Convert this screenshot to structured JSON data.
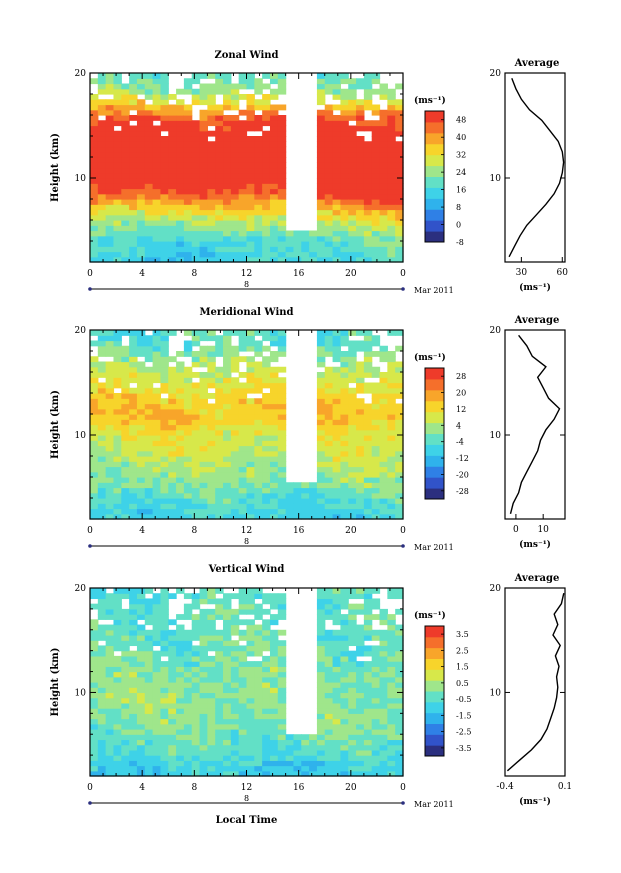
{
  "figure": {
    "x_label": "Local Time",
    "date_label": "Mar 2011",
    "day_label": "8",
    "y_label": "Height (km)",
    "avg_title": "Average",
    "unit_label": "(ms⁻¹)"
  },
  "chart_data": [
    {
      "type": "heatmap",
      "title": "Zonal Wind",
      "xlabel": "Local Time",
      "ylabel": "Height (km)",
      "x_ticks": [
        "0",
        "4",
        "8",
        "12",
        "16",
        "20",
        "0"
      ],
      "xlim": [
        0,
        24
      ],
      "y_ticks": [
        "20",
        "10"
      ],
      "ylim": [
        2,
        20
      ],
      "colorbar": {
        "unit": "(ms⁻¹)",
        "ticks": [
          "48",
          "40",
          "32",
          "24",
          "16",
          "8",
          "0",
          "-8"
        ],
        "range": [
          -8,
          52
        ]
      },
      "field_profile": [
        [
          2,
          14
        ],
        [
          4,
          16
        ],
        [
          6,
          26
        ],
        [
          7,
          34
        ],
        [
          8,
          42
        ],
        [
          9,
          48
        ],
        [
          10,
          55
        ],
        [
          12,
          58
        ],
        [
          14,
          55
        ],
        [
          16,
          45
        ],
        [
          17,
          35
        ],
        [
          18,
          26
        ],
        [
          19,
          22
        ],
        [
          20,
          20
        ]
      ],
      "average": {
        "title": "Average",
        "x_ticks": [
          "30",
          "60"
        ],
        "xlim": [
          18,
          62
        ],
        "y_ticks": [
          "20",
          "10"
        ],
        "xlabel": "(ms⁻¹)",
        "height": [
          2.5,
          3.5,
          4.5,
          5.5,
          6.5,
          7.5,
          8.5,
          9.5,
          10.5,
          11.5,
          12.5,
          13.5,
          14.5,
          15.5,
          16.5,
          17.5,
          18.5,
          19.5
        ],
        "values": [
          21,
          25,
          29,
          34,
          41,
          48,
          54,
          58,
          60,
          61,
          60,
          57,
          51,
          45,
          36,
          30,
          26,
          23
        ]
      }
    },
    {
      "type": "heatmap",
      "title": "Meridional Wind",
      "xlabel": "Local Time",
      "ylabel": "Height (km)",
      "x_ticks": [
        "0",
        "4",
        "8",
        "12",
        "16",
        "20",
        "0"
      ],
      "xlim": [
        0,
        24
      ],
      "y_ticks": [
        "20",
        "10"
      ],
      "ylim": [
        2,
        20
      ],
      "colorbar": {
        "unit": "(ms⁻¹)",
        "ticks": [
          "28",
          "20",
          "12",
          "4",
          "-4",
          "-12",
          "-20",
          "-28"
        ],
        "range": [
          -32,
          32
        ]
      },
      "field_profile": [
        [
          2,
          -8
        ],
        [
          4,
          -4
        ],
        [
          6,
          2
        ],
        [
          8,
          6
        ],
        [
          10,
          9
        ],
        [
          12,
          16
        ],
        [
          14,
          12
        ],
        [
          16,
          7
        ],
        [
          18,
          0
        ],
        [
          19,
          -4
        ],
        [
          20,
          -2
        ]
      ],
      "average": {
        "title": "Average",
        "x_ticks": [
          "0",
          "10"
        ],
        "xlim": [
          -4,
          18
        ],
        "y_ticks": [
          "20",
          "10"
        ],
        "xlabel": "(ms⁻¹)",
        "height": [
          2.5,
          3.5,
          4.5,
          5.5,
          6.5,
          7.5,
          8.5,
          9.5,
          10.5,
          11.5,
          12.5,
          13.5,
          14.5,
          15.5,
          16.5,
          17.5,
          18.5,
          19.5
        ],
        "values": [
          -2,
          -1,
          1,
          2,
          4,
          6,
          8,
          9,
          11,
          14,
          16,
          12,
          10,
          8,
          11,
          6,
          4,
          1
        ]
      }
    },
    {
      "type": "heatmap",
      "title": "Vertical Wind",
      "xlabel": "Local Time",
      "ylabel": "Height (km)",
      "x_ticks": [
        "0",
        "4",
        "8",
        "12",
        "16",
        "20",
        "0"
      ],
      "xlim": [
        0,
        24
      ],
      "y_ticks": [
        "20",
        "10"
      ],
      "ylim": [
        2,
        20
      ],
      "colorbar": {
        "unit": "(ms⁻¹)",
        "ticks": [
          "3.5",
          "2.5",
          "1.5",
          "0.5",
          "-0.5",
          "-1.5",
          "-2.5",
          "-3.5"
        ],
        "range": [
          -4,
          4
        ]
      },
      "field_profile": [
        [
          2,
          -1.2
        ],
        [
          4,
          -0.6
        ],
        [
          6,
          -0.1
        ],
        [
          8,
          0.1
        ],
        [
          10,
          0.2
        ],
        [
          12,
          0.0
        ],
        [
          14,
          -0.2
        ],
        [
          16,
          -0.3
        ],
        [
          18,
          -0.4
        ],
        [
          20,
          -0.5
        ]
      ],
      "average": {
        "title": "Average",
        "x_ticks": [
          "-0.4",
          "0.1"
        ],
        "xlim": [
          -0.4,
          0.1
        ],
        "y_ticks": [
          "20",
          "10"
        ],
        "xlabel": "(ms⁻¹)",
        "height": [
          2.5,
          3.5,
          4.5,
          5.5,
          6.5,
          7.5,
          8.5,
          9.5,
          10.5,
          11.5,
          12.5,
          13.5,
          14.5,
          15.5,
          16.5,
          17.5,
          18.5,
          19.5
        ],
        "values": [
          -0.38,
          -0.28,
          -0.18,
          -0.1,
          -0.05,
          -0.02,
          0.01,
          0.03,
          0.04,
          0.03,
          0.05,
          0.02,
          0.06,
          0.0,
          0.04,
          0.01,
          0.07,
          0.09
        ]
      }
    }
  ]
}
